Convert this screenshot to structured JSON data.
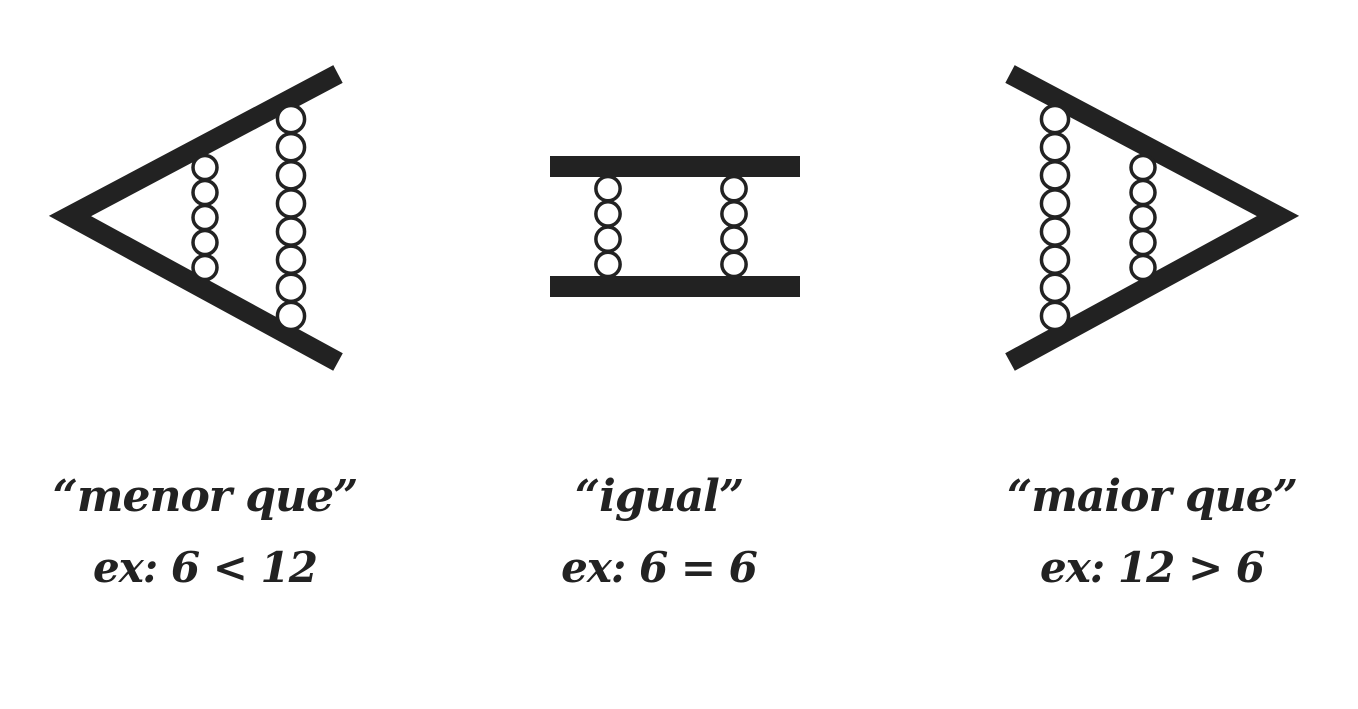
{
  "colors": {
    "background": "#ffffff",
    "ink": "#222222"
  },
  "symbols": [
    {
      "id": "less-than",
      "shape": "less-than-sign",
      "title": "“menor que”",
      "example": "ex: 6 < 12",
      "spring_coils": [
        5,
        8
      ]
    },
    {
      "id": "equal",
      "shape": "equals-sign",
      "title": "“igual”",
      "example": "ex: 6 = 6",
      "spring_coils": [
        4,
        4
      ]
    },
    {
      "id": "greater-than",
      "shape": "greater-than-sign",
      "title": "“maior que”",
      "example": "ex: 12 > 6",
      "spring_coils": [
        8,
        5
      ]
    }
  ]
}
